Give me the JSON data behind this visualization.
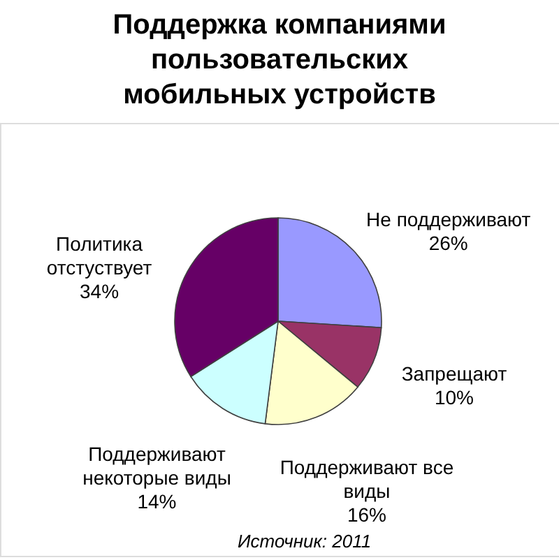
{
  "chart_data": {
    "type": "pie",
    "title": "Поддержка компаниями пользовательских мобильных устройств",
    "categories": [
      "Не поддерживают",
      "Запрещают",
      "Поддерживают все виды",
      "Поддерживают некоторые виды",
      "Политика отстуствует"
    ],
    "values": [
      26,
      10,
      16,
      14,
      34
    ],
    "value_labels": [
      "26%",
      "10%",
      "16%",
      "14%",
      "34%"
    ],
    "colors": [
      "#9999ff",
      "#993366",
      "#ffffcc",
      "#ccffff",
      "#660066"
    ],
    "annotations": [
      "Источник: 2011"
    ]
  }
}
